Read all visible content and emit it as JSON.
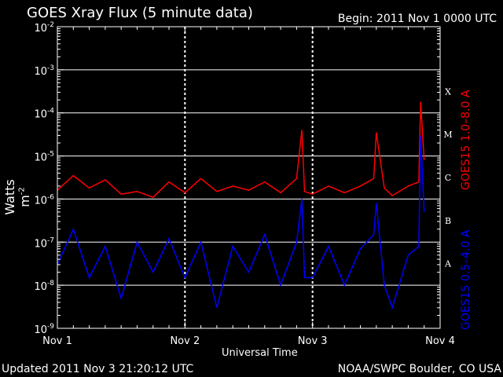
{
  "header": {
    "title": "GOES Xray Flux (5 minute data)",
    "begin": "Begin:  2011 Nov 1 0000 UTC"
  },
  "footer": {
    "updated": "Updated 2011 Nov  3 21:20:12 UTC",
    "credit": "NOAA/SWPC Boulder, CO USA"
  },
  "colors": {
    "long_channel": "#ff0000",
    "short_channel": "#0000ff",
    "grid": "#ffffff",
    "background": "#000000"
  },
  "chart_data": {
    "type": "line",
    "title": "GOES Xray Flux (5 minute data)",
    "xlabel": "Universal Time",
    "ylabel": "Watts m",
    "ylabel_sup": "-2",
    "yscale": "log",
    "ylim": [
      1e-09,
      0.01
    ],
    "xlim": [
      "2011-11-01 00:00",
      "2011-11-04 00:00"
    ],
    "grid": true,
    "x_tick_labels": [
      "Nov 1",
      "Nov 2",
      "Nov 3",
      "Nov 4"
    ],
    "y_tick_labels": [
      {
        "base": "10",
        "exp": "-9"
      },
      {
        "base": "10",
        "exp": "-8"
      },
      {
        "base": "10",
        "exp": "-7"
      },
      {
        "base": "10",
        "exp": "-6"
      },
      {
        "base": "10",
        "exp": "-5"
      },
      {
        "base": "10",
        "exp": "-4"
      },
      {
        "base": "10",
        "exp": "-3"
      },
      {
        "base": "10",
        "exp": "-2"
      }
    ],
    "flare_classes": [
      {
        "label": "A",
        "level": 1e-08
      },
      {
        "label": "B",
        "level": 1e-07
      },
      {
        "label": "C",
        "level": 1e-06
      },
      {
        "label": "M",
        "level": 1e-05
      },
      {
        "label": "X",
        "level": 0.0001
      }
    ],
    "series": [
      {
        "name": "GOES15 1.0–8.0 A",
        "color": "#ff0000",
        "x": [
          "2011-11-01 00:00",
          "2011-11-01 03:00",
          "2011-11-01 06:00",
          "2011-11-01 09:00",
          "2011-11-01 12:00",
          "2011-11-01 15:00",
          "2011-11-01 18:00",
          "2011-11-01 21:00",
          "2011-11-02 00:00",
          "2011-11-02 03:00",
          "2011-11-02 06:00",
          "2011-11-02 09:00",
          "2011-11-02 12:00",
          "2011-11-02 15:00",
          "2011-11-02 18:00",
          "2011-11-02 21:00",
          "2011-11-02 22:00",
          "2011-11-02 22:30",
          "2011-11-03 00:00",
          "2011-11-03 03:00",
          "2011-11-03 06:00",
          "2011-11-03 09:00",
          "2011-11-03 11:30",
          "2011-11-03 12:00",
          "2011-11-03 13:30",
          "2011-11-03 15:00",
          "2011-11-03 18:00",
          "2011-11-03 20:00",
          "2011-11-03 20:20",
          "2011-11-03 21:00"
        ],
        "values": [
          1.6e-06,
          3.5e-06,
          1.8e-06,
          2.8e-06,
          1.3e-06,
          1.5e-06,
          1.1e-06,
          2.5e-06,
          1.4e-06,
          3e-06,
          1.5e-06,
          2e-06,
          1.6e-06,
          2.5e-06,
          1.4e-06,
          3e-06,
          4e-05,
          1.5e-06,
          1.3e-06,
          2e-06,
          1.4e-06,
          2e-06,
          3e-06,
          3.5e-05,
          1.8e-06,
          1.2e-06,
          2e-06,
          2.5e-06,
          0.00018,
          8e-06
        ]
      },
      {
        "name": "GOES15 0.5–4.0 A",
        "color": "#0000ff",
        "x": [
          "2011-11-01 00:00",
          "2011-11-01 03:00",
          "2011-11-01 06:00",
          "2011-11-01 09:00",
          "2011-11-01 12:00",
          "2011-11-01 15:00",
          "2011-11-01 18:00",
          "2011-11-01 21:00",
          "2011-11-02 00:00",
          "2011-11-02 03:00",
          "2011-11-02 06:00",
          "2011-11-02 09:00",
          "2011-11-02 12:00",
          "2011-11-02 15:00",
          "2011-11-02 18:00",
          "2011-11-02 21:00",
          "2011-11-02 22:00",
          "2011-11-02 22:30",
          "2011-11-03 00:00",
          "2011-11-03 03:00",
          "2011-11-03 06:00",
          "2011-11-03 09:00",
          "2011-11-03 11:30",
          "2011-11-03 12:00",
          "2011-11-03 13:30",
          "2011-11-03 15:00",
          "2011-11-03 18:00",
          "2011-11-03 20:00",
          "2011-11-03 20:20",
          "2011-11-03 21:00"
        ],
        "values": [
          3e-08,
          2e-07,
          1.5e-08,
          8e-08,
          5e-09,
          1e-07,
          2e-08,
          1.2e-07,
          1.5e-08,
          1e-07,
          3e-09,
          8e-08,
          2e-08,
          1.5e-07,
          1e-08,
          1e-07,
          1e-06,
          1.5e-08,
          1.5e-08,
          8e-08,
          1e-08,
          7e-08,
          1.5e-07,
          8e-07,
          1e-08,
          3e-09,
          5e-08,
          8e-08,
          3e-05,
          5e-07
        ]
      }
    ]
  }
}
